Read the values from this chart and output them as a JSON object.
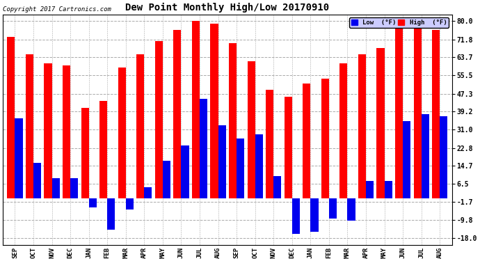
{
  "title": "Dew Point Monthly High/Low 20170910",
  "copyright": "Copyright 2017 Cartronics.com",
  "categories": [
    "SEP",
    "OCT",
    "NOV",
    "DEC",
    "JAN",
    "FEB",
    "MAR",
    "APR",
    "MAY",
    "JUN",
    "JUL",
    "AUG",
    "SEP",
    "OCT",
    "NOV",
    "DEC",
    "JAN",
    "FEB",
    "MAR",
    "APR",
    "MAY",
    "JUN",
    "JUL",
    "AUG"
  ],
  "high_values": [
    73,
    65,
    61,
    60,
    41,
    44,
    59,
    65,
    71,
    76,
    80,
    79,
    70,
    62,
    49,
    46,
    52,
    54,
    61,
    65,
    68,
    77,
    80,
    76
  ],
  "low_values": [
    36,
    16,
    9,
    9,
    -4,
    -14,
    -5,
    5,
    17,
    24,
    45,
    33,
    27,
    29,
    10,
    -16,
    -15,
    -9,
    -10,
    8,
    8,
    35,
    38,
    37
  ],
  "high_color": "#ff0000",
  "low_color": "#0000ee",
  "bg_color": "#ffffff",
  "grid_color": "#aaaaaa",
  "yticks": [
    -18.0,
    -9.8,
    -1.7,
    6.5,
    14.7,
    22.8,
    31.0,
    39.2,
    47.3,
    55.5,
    63.7,
    71.8,
    80.0
  ],
  "ylim": [
    -21,
    83
  ],
  "bar_width": 0.42
}
